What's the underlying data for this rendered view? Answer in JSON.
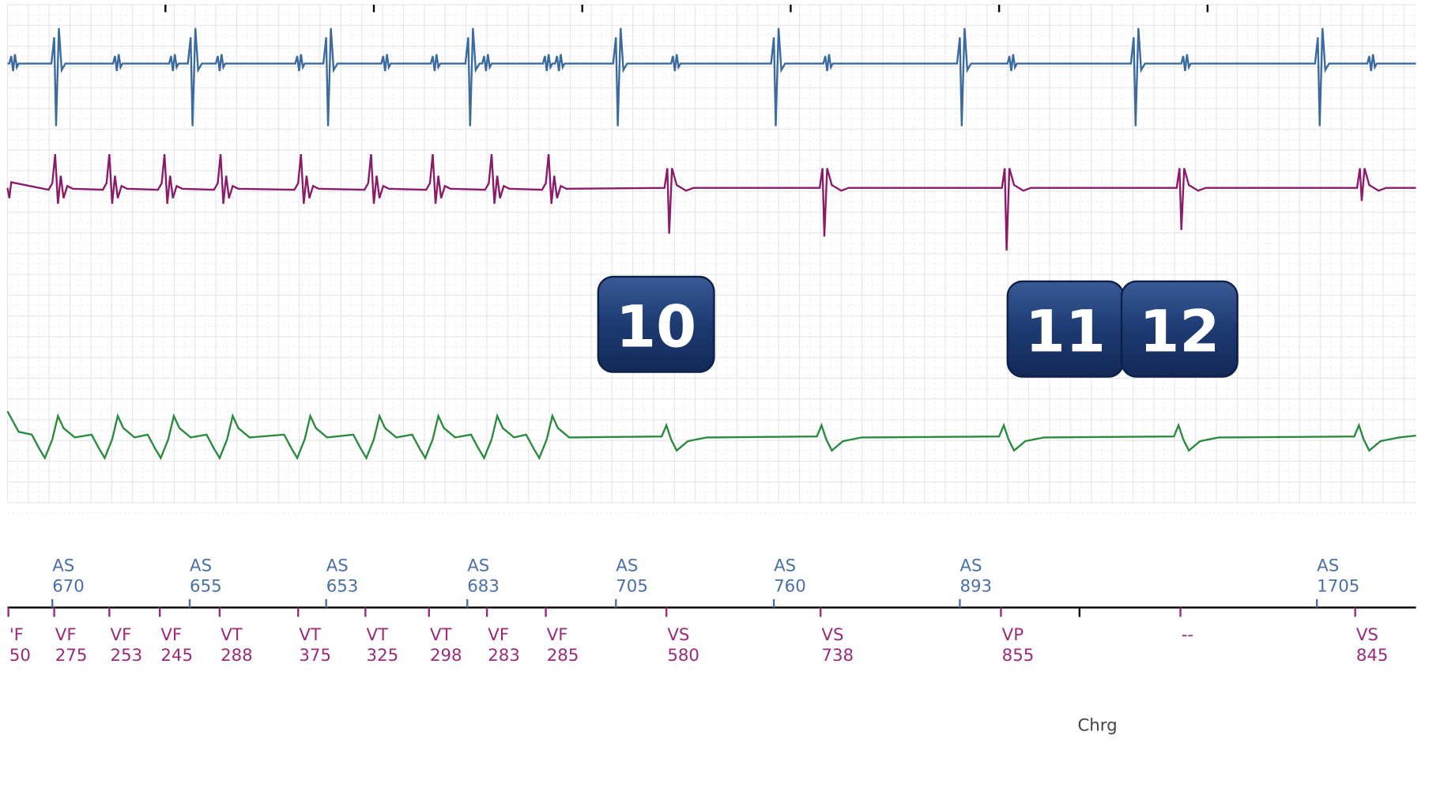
{
  "atrial_markers": [
    {
      "label": "AS",
      "interval": "670"
    },
    {
      "label": "AS",
      "interval": "655"
    },
    {
      "label": "AS",
      "interval": "653"
    },
    {
      "label": "AS",
      "interval": "683"
    },
    {
      "label": "AS",
      "interval": "705"
    },
    {
      "label": "AS",
      "interval": "760"
    },
    {
      "label": "AS",
      "interval": "893"
    },
    {
      "label": "AS",
      "interval": "1705"
    }
  ],
  "ventricular_markers": [
    {
      "label": "'F",
      "interval": "50"
    },
    {
      "label": "VF",
      "interval": "275"
    },
    {
      "label": "VF",
      "interval": "253"
    },
    {
      "label": "VF",
      "interval": "245"
    },
    {
      "label": "VT",
      "interval": "288"
    },
    {
      "label": "VT",
      "interval": "375"
    },
    {
      "label": "VT",
      "interval": "325"
    },
    {
      "label": "VT",
      "interval": "298"
    },
    {
      "label": "VF",
      "interval": "283"
    },
    {
      "label": "VF",
      "interval": "285"
    },
    {
      "label": "VS",
      "interval": "580"
    },
    {
      "label": "VS",
      "interval": "738"
    },
    {
      "label": "VP",
      "interval": "855"
    },
    {
      "label": "--"
    },
    {
      "label": "VS",
      "interval": "845"
    }
  ],
  "badges": [
    "10",
    "11",
    "12"
  ],
  "charge_label": "Chrg"
}
